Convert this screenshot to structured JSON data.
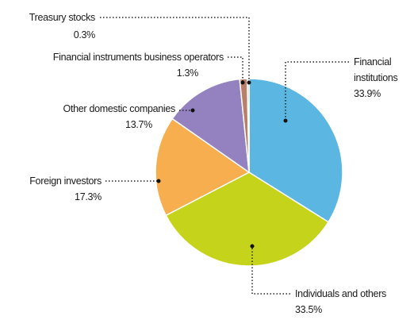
{
  "chart_data": {
    "type": "pie",
    "categories": [
      "Financial institutions",
      "Individuals and others",
      "Foreign investors",
      "Other domestic companies",
      "Financial instruments business operators",
      "Treasury stocks"
    ],
    "values": [
      33.9,
      33.5,
      17.3,
      13.7,
      1.3,
      0.3
    ],
    "value_labels": [
      "33.9%",
      "33.5%",
      "17.3%",
      "13.7%",
      "1.3%",
      "0.3%"
    ],
    "colors": [
      "#5cb6e2",
      "#c5d41a",
      "#f6ae4f",
      "#9381c0",
      "#b98069",
      "#a9a9a9"
    ]
  }
}
